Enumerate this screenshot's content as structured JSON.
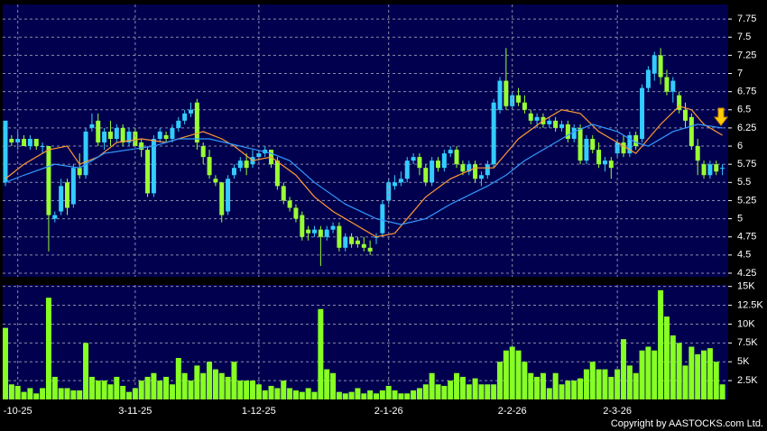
{
  "chart_data": [
    {
      "type": "candlestick",
      "up_color": "#33ccff",
      "down_color": "#99ff33",
      "grid": true,
      "ylim": [
        4.2,
        7.95
      ],
      "yticks": [
        4.25,
        4.5,
        4.75,
        5,
        5.25,
        5.5,
        5.75,
        6,
        6.25,
        6.5,
        6.75,
        7,
        7.25,
        7.5,
        7.75
      ],
      "open": [
        5.5,
        6.1,
        6.05,
        6.1,
        6.0,
        6.1,
        6.0,
        6.0,
        5.0,
        5.1,
        5.5,
        5.2,
        5.7,
        5.6,
        6.25,
        6.35,
        6.05,
        6.2,
        6.1,
        6.25,
        6.05,
        6.2,
        6.05,
        5.95,
        5.35,
        6.1,
        6.15,
        6.1,
        6.25,
        6.35,
        6.45,
        6.6,
        6.0,
        5.85,
        5.55,
        5.5,
        5.1,
        5.6,
        5.7,
        5.8,
        5.75,
        5.85,
        5.9,
        5.95,
        5.8,
        5.45,
        5.25,
        5.15,
        5.05,
        4.85,
        4.8,
        4.85,
        4.75,
        4.85,
        4.9,
        4.6,
        4.75,
        4.7,
        4.65,
        4.6,
        4.75,
        4.8,
        5.25,
        5.45,
        5.5,
        5.55,
        5.8,
        5.85,
        5.7,
        5.5,
        5.8,
        5.7,
        5.9,
        5.95,
        5.75,
        5.65,
        5.75,
        5.55,
        5.6,
        5.75,
        6.5,
        6.9,
        6.55,
        6.7,
        6.6,
        6.45,
        6.35,
        6.4,
        6.3,
        6.35,
        6.25,
        6.3,
        6.1,
        6.25,
        5.8,
        6.1,
        5.95,
        5.75,
        5.8,
        5.9,
        6.05,
        5.9,
        6.15,
        6.1,
        6.8,
        7.0,
        7.25,
        6.95,
        6.75,
        6.7,
        6.5,
        6.4,
        6.0,
        5.75,
        5.6,
        5.75,
        5.7
      ],
      "high": [
        6.35,
        6.15,
        6.2,
        6.15,
        6.15,
        6.1,
        6.05,
        6.0,
        5.1,
        5.55,
        5.55,
        5.75,
        5.9,
        6.25,
        6.45,
        6.45,
        6.25,
        6.35,
        6.3,
        6.3,
        6.25,
        6.25,
        6.1,
        6.0,
        6.15,
        6.25,
        6.2,
        6.3,
        6.4,
        6.5,
        6.6,
        6.65,
        6.05,
        5.95,
        5.6,
        5.5,
        5.6,
        5.75,
        5.85,
        5.9,
        5.95,
        5.95,
        6.0,
        5.95,
        5.85,
        5.5,
        5.3,
        5.2,
        5.1,
        4.9,
        4.9,
        4.9,
        4.9,
        4.95,
        4.95,
        4.8,
        4.8,
        4.75,
        4.75,
        4.7,
        4.8,
        5.25,
        5.55,
        5.6,
        5.65,
        5.85,
        5.9,
        5.9,
        5.75,
        5.85,
        5.85,
        5.95,
        6.0,
        6.0,
        5.8,
        5.8,
        5.8,
        5.65,
        5.8,
        6.65,
        6.95,
        7.35,
        6.75,
        6.8,
        6.7,
        6.5,
        6.45,
        6.45,
        6.4,
        6.4,
        6.35,
        6.35,
        6.3,
        6.3,
        6.15,
        6.15,
        6.05,
        5.85,
        5.85,
        6.1,
        6.15,
        6.2,
        6.2,
        6.85,
        7.1,
        7.3,
        7.35,
        7.05,
        6.95,
        6.75,
        6.6,
        6.45,
        6.1,
        5.8,
        5.8,
        5.8,
        5.75
      ],
      "low": [
        5.45,
        6.0,
        5.95,
        6.0,
        5.95,
        5.95,
        5.9,
        4.55,
        4.95,
        5.05,
        5.05,
        5.15,
        5.55,
        5.55,
        6.2,
        6.0,
        5.95,
        6.0,
        6.05,
        6.0,
        6.0,
        6.0,
        5.85,
        5.3,
        5.3,
        6.05,
        6.05,
        6.05,
        6.2,
        6.3,
        6.4,
        5.95,
        5.75,
        5.55,
        5.45,
        4.95,
        5.05,
        5.55,
        5.65,
        5.6,
        5.7,
        5.8,
        5.85,
        5.7,
        5.4,
        5.2,
        5.1,
        4.95,
        4.7,
        4.7,
        4.75,
        4.35,
        4.7,
        4.8,
        4.55,
        4.55,
        4.6,
        4.6,
        4.55,
        4.5,
        4.65,
        4.75,
        5.2,
        5.4,
        5.45,
        5.5,
        5.75,
        5.6,
        5.45,
        5.45,
        5.65,
        5.65,
        5.85,
        5.7,
        5.6,
        5.6,
        5.5,
        5.45,
        5.55,
        5.7,
        6.45,
        6.5,
        6.5,
        6.55,
        6.45,
        6.3,
        6.25,
        6.25,
        6.25,
        6.2,
        6.2,
        6.05,
        6.05,
        5.75,
        5.75,
        5.9,
        5.7,
        5.65,
        5.55,
        5.85,
        5.85,
        5.85,
        5.95,
        6.05,
        6.75,
        6.9,
        6.85,
        6.7,
        6.6,
        6.45,
        6.25,
        5.95,
        5.6,
        5.55,
        5.55,
        5.6,
        5.6
      ],
      "close": [
        6.35,
        6.05,
        6.1,
        6.0,
        6.1,
        6.0,
        6.0,
        5.05,
        5.05,
        5.45,
        5.15,
        5.7,
        5.6,
        6.2,
        6.3,
        6.05,
        6.2,
        6.1,
        6.25,
        6.05,
        6.2,
        6.0,
        5.95,
        5.35,
        6.1,
        6.2,
        6.1,
        6.25,
        6.35,
        6.45,
        6.5,
        6.05,
        5.85,
        5.6,
        5.5,
        5.05,
        5.55,
        5.7,
        5.8,
        5.7,
        5.85,
        5.9,
        5.95,
        5.75,
        5.45,
        5.25,
        5.15,
        5.0,
        4.75,
        4.8,
        4.85,
        4.75,
        4.85,
        4.9,
        4.6,
        4.75,
        4.65,
        4.65,
        4.6,
        4.55,
        4.75,
        5.2,
        5.5,
        5.5,
        5.55,
        5.8,
        5.85,
        5.7,
        5.5,
        5.8,
        5.7,
        5.9,
        5.95,
        5.75,
        5.65,
        5.75,
        5.55,
        5.6,
        5.75,
        6.6,
        6.9,
        6.55,
        6.7,
        6.6,
        6.5,
        6.35,
        6.4,
        6.3,
        6.35,
        6.25,
        6.3,
        6.1,
        6.25,
        5.8,
        6.1,
        5.95,
        5.75,
        5.8,
        5.7,
        6.05,
        5.9,
        6.15,
        6.0,
        6.8,
        7.05,
        7.25,
        6.95,
        6.75,
        6.9,
        6.5,
        6.35,
        6.0,
        5.8,
        5.6,
        5.75,
        5.65,
        5.7
      ],
      "lines": [
        {
          "color": "#ff9933",
          "x": [
            0,
            3,
            7,
            10,
            12,
            15,
            18,
            22,
            26,
            30,
            32,
            35,
            37,
            40,
            43,
            47,
            50,
            53,
            56,
            60,
            63,
            65,
            68,
            72,
            76,
            79,
            81,
            83,
            87,
            90,
            93,
            96,
            100,
            102,
            104,
            106,
            109,
            111,
            113,
            116
          ],
          "values": [
            5.55,
            5.75,
            5.95,
            6.0,
            5.75,
            5.85,
            6.05,
            6.1,
            6.05,
            6.15,
            6.2,
            6.1,
            6.0,
            5.8,
            5.85,
            5.6,
            5.3,
            5.1,
            4.95,
            4.75,
            4.8,
            5.0,
            5.3,
            5.55,
            5.7,
            5.7,
            5.9,
            6.1,
            6.35,
            6.5,
            6.45,
            6.2,
            6.0,
            5.9,
            6.1,
            6.3,
            6.55,
            6.5,
            6.3,
            6.15
          ]
        },
        {
          "color": "#3399ff",
          "x": [
            0,
            3,
            8,
            12,
            16,
            20,
            24,
            28,
            33,
            38,
            43,
            46,
            50,
            55,
            60,
            64,
            68,
            72,
            78,
            81,
            84,
            88,
            92,
            95,
            99,
            102,
            104,
            108,
            112,
            116
          ],
          "values": [
            5.5,
            5.6,
            5.75,
            5.7,
            5.9,
            5.95,
            6.0,
            6.1,
            6.1,
            6.0,
            5.9,
            5.8,
            5.5,
            5.2,
            5.0,
            4.92,
            5.0,
            5.2,
            5.45,
            5.6,
            5.8,
            6.0,
            6.2,
            6.3,
            6.2,
            6.05,
            6.0,
            6.2,
            6.3,
            6.25
          ]
        }
      ]
    },
    {
      "type": "bar",
      "color": "#88ff22",
      "grid": true,
      "ylim": [
        0,
        15200
      ],
      "yticks": [
        {
          "value": 2500,
          "label": "2.5K"
        },
        {
          "value": 5000,
          "label": "5K"
        },
        {
          "value": 7500,
          "label": "7.5K"
        },
        {
          "value": 10000,
          "label": "10K"
        },
        {
          "value": 12500,
          "label": "12.5K"
        },
        {
          "value": 15000,
          "label": "15K"
        }
      ],
      "categories": [
        null,
        null,
        "-10-25",
        null,
        null,
        null,
        null,
        null,
        null,
        null,
        null,
        null,
        null,
        null,
        null,
        null,
        null,
        null,
        null,
        null,
        null,
        "3-11-25",
        null,
        null,
        null,
        null,
        null,
        null,
        null,
        null,
        null,
        null,
        null,
        null,
        null,
        null,
        null,
        null,
        null,
        null,
        null,
        "1-12-25",
        null,
        null,
        null,
        null,
        null,
        null,
        null,
        null,
        null,
        null,
        null,
        null,
        null,
        null,
        null,
        null,
        null,
        null,
        null,
        null,
        "2-1-26",
        null,
        null,
        null,
        null,
        null,
        null,
        null,
        null,
        null,
        null,
        null,
        null,
        null,
        null,
        null,
        null,
        null,
        null,
        null,
        "2-2-26",
        null,
        null,
        null,
        null,
        null,
        null,
        null,
        null,
        null,
        null,
        null,
        null,
        null,
        null,
        null,
        null,
        "2-3-26",
        null,
        null,
        null,
        null,
        null,
        null,
        null,
        null,
        null,
        null,
        null,
        null,
        null,
        null,
        null,
        null,
        null
      ],
      "values": [
        9500,
        2000,
        1800,
        1000,
        1500,
        800,
        1500,
        13500,
        3000,
        1500,
        1500,
        1200,
        1200,
        7500,
        3000,
        2500,
        2500,
        2000,
        3000,
        1800,
        1000,
        1500,
        2500,
        3000,
        3500,
        2500,
        3000,
        2000,
        5500,
        3500,
        2500,
        4500,
        3500,
        5000,
        4000,
        3500,
        3000,
        5000,
        2500,
        2500,
        2500,
        2000,
        1200,
        1800,
        1500,
        2500,
        1500,
        1200,
        1000,
        1500,
        1000,
        12000,
        4000,
        3500,
        1000,
        800,
        1000,
        1500,
        800,
        1200,
        800,
        1200,
        1800,
        1200,
        800,
        800,
        1200,
        1500,
        2000,
        3500,
        2000,
        1800,
        2500,
        3500,
        3000,
        2000,
        2800,
        2000,
        2000,
        2000,
        5000,
        6500,
        7000,
        6500,
        5000,
        3500,
        3000,
        3500,
        1500,
        3500,
        2000,
        2500,
        2500,
        2800,
        4000,
        5000,
        4000,
        4000,
        3000,
        4000,
        8000,
        4500,
        3500,
        6500,
        7000,
        6500,
        14500,
        11000,
        8500,
        7500,
        4500,
        7000,
        6000,
        6500,
        6800,
        5000,
        2000
      ]
    },
    {
      "type": "text",
      "copyright": "Copyright by AASTOCKS.com Ltd."
    }
  ]
}
